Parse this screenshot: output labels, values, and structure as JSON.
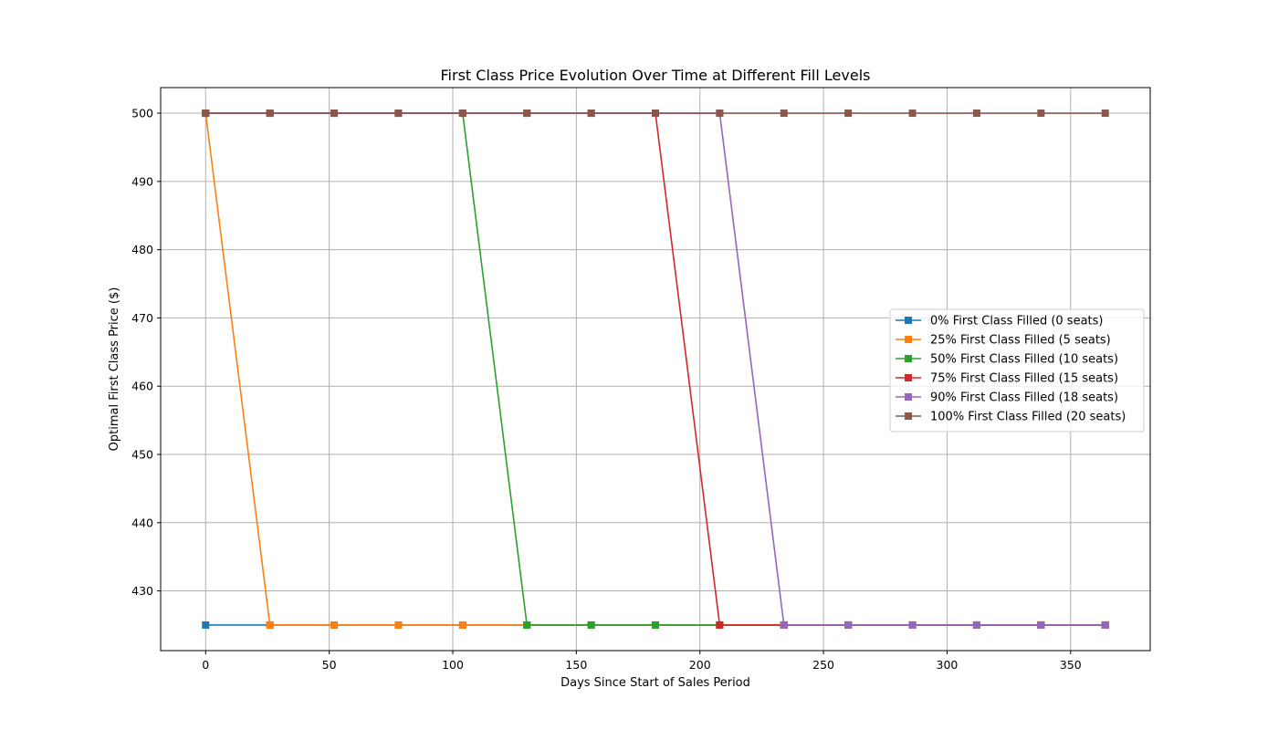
{
  "chart_data": {
    "type": "line",
    "title": "First Class Price Evolution Over Time at Different Fill Levels",
    "xlabel": "Days Since Start of Sales Period",
    "ylabel": "Optimal First Class Price ($)",
    "xlim": [
      -18.2,
      382.2
    ],
    "ylim": [
      421.25,
      503.75
    ],
    "xticks": [
      0,
      50,
      100,
      150,
      200,
      250,
      300,
      350
    ],
    "yticks": [
      430,
      440,
      450,
      460,
      470,
      480,
      490,
      500
    ],
    "grid": true,
    "legend_position": "center-right",
    "marker": "square",
    "x": [
      0,
      26,
      52,
      78,
      104,
      130,
      156,
      182,
      208,
      234,
      260,
      286,
      312,
      338,
      364
    ],
    "series": [
      {
        "name": "0% First Class Filled (0 seats)",
        "color": "#1f77b4",
        "values": [
          425,
          425,
          425,
          425,
          425,
          425,
          425,
          425,
          425,
          425,
          425,
          425,
          425,
          425,
          425
        ]
      },
      {
        "name": "25% First Class Filled (5 seats)",
        "color": "#ff7f0e",
        "values": [
          500,
          425,
          425,
          425,
          425,
          425,
          425,
          425,
          425,
          425,
          425,
          425,
          425,
          425,
          425
        ]
      },
      {
        "name": "50% First Class Filled (10 seats)",
        "color": "#2ca02c",
        "values": [
          500,
          500,
          500,
          500,
          500,
          425,
          425,
          425,
          425,
          425,
          425,
          425,
          425,
          425,
          425
        ]
      },
      {
        "name": "75% First Class Filled (15 seats)",
        "color": "#d62728",
        "values": [
          500,
          500,
          500,
          500,
          500,
          500,
          500,
          500,
          425,
          425,
          425,
          425,
          425,
          425,
          425
        ]
      },
      {
        "name": "90% First Class Filled (18 seats)",
        "color": "#9467bd",
        "values": [
          500,
          500,
          500,
          500,
          500,
          500,
          500,
          500,
          500,
          425,
          425,
          425,
          425,
          425,
          425
        ]
      },
      {
        "name": "100% First Class Filled (20 seats)",
        "color": "#8c564b",
        "values": [
          500,
          500,
          500,
          500,
          500,
          500,
          500,
          500,
          500,
          500,
          500,
          500,
          500,
          500,
          500
        ]
      }
    ]
  }
}
